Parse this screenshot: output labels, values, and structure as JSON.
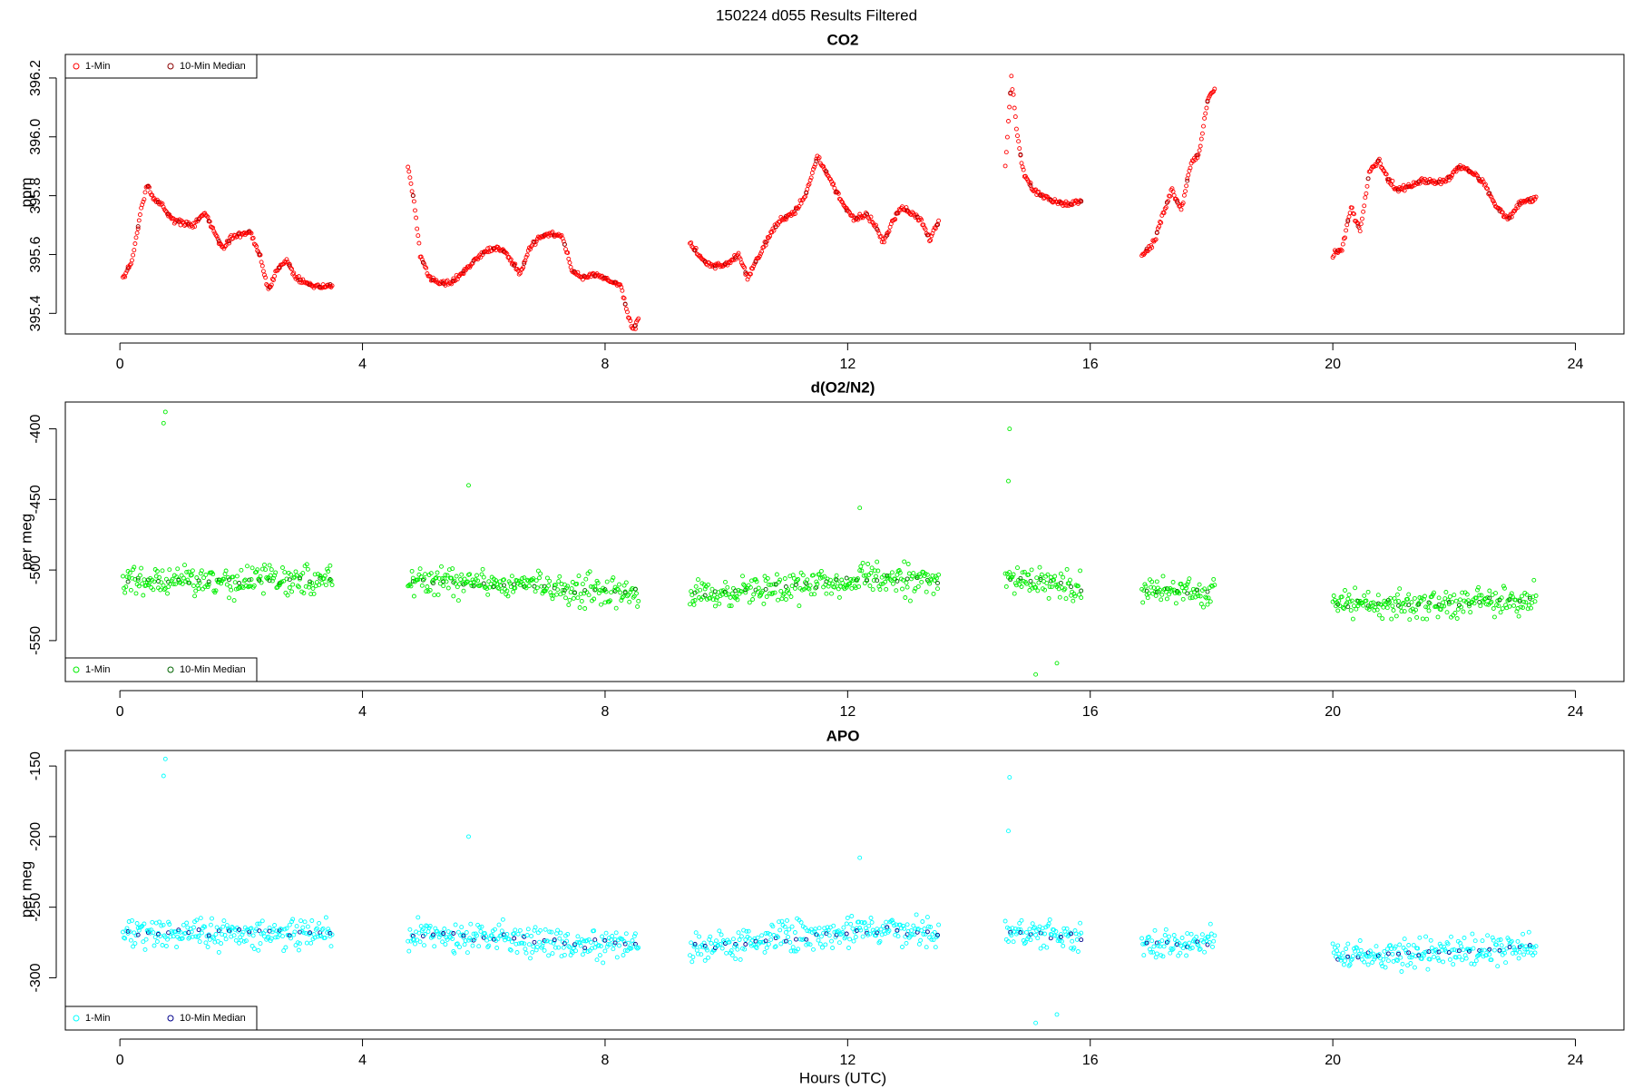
{
  "title": "150224   d055   Results Filtered",
  "xlabel": "Hours (UTC)",
  "chart_data": [
    {
      "type": "scatter",
      "title": "CO2",
      "ylabel": "ppm",
      "xlim": [
        -0.9,
        24.8
      ],
      "ylim": [
        395.33,
        396.28
      ],
      "xticks": [
        0,
        4,
        8,
        12,
        16,
        20,
        24
      ],
      "yticks": [
        395.4,
        395.6,
        395.8,
        396.0,
        396.2
      ],
      "ytick_labels": [
        "395.4",
        "395.6",
        "395.8",
        "396.0",
        "396.2"
      ],
      "legend": {
        "position": "top-left",
        "entries": [
          "1-Min",
          "10-Min Median"
        ]
      },
      "colors": {
        "one_min": "#ff0000",
        "median": "#8b0000"
      },
      "segments": [
        [
          0.05,
          3.5
        ],
        [
          4.75,
          8.55
        ],
        [
          9.4,
          13.5
        ],
        [
          14.6,
          15.85
        ],
        [
          16.85,
          18.05
        ],
        [
          20.0,
          23.35
        ]
      ],
      "anchors": [
        [
          0.05,
          395.52
        ],
        [
          0.2,
          395.58
        ],
        [
          0.35,
          395.75
        ],
        [
          0.45,
          395.84
        ],
        [
          0.55,
          395.79
        ],
        [
          0.7,
          395.77
        ],
        [
          0.85,
          395.72
        ],
        [
          1.0,
          395.71
        ],
        [
          1.2,
          395.7
        ],
        [
          1.4,
          395.74
        ],
        [
          1.55,
          395.68
        ],
        [
          1.7,
          395.62
        ],
        [
          1.85,
          395.66
        ],
        [
          2.0,
          395.67
        ],
        [
          2.15,
          395.68
        ],
        [
          2.3,
          395.6
        ],
        [
          2.45,
          395.48
        ],
        [
          2.6,
          395.55
        ],
        [
          2.75,
          395.58
        ],
        [
          2.9,
          395.52
        ],
        [
          3.1,
          395.5
        ],
        [
          3.3,
          395.49
        ],
        [
          3.5,
          395.5
        ],
        [
          4.75,
          395.9
        ],
        [
          4.85,
          395.78
        ],
        [
          4.95,
          395.6
        ],
        [
          5.1,
          395.52
        ],
        [
          5.3,
          395.5
        ],
        [
          5.5,
          395.51
        ],
        [
          5.7,
          395.55
        ],
        [
          5.9,
          395.59
        ],
        [
          6.1,
          395.62
        ],
        [
          6.3,
          395.62
        ],
        [
          6.45,
          395.58
        ],
        [
          6.6,
          395.53
        ],
        [
          6.75,
          395.62
        ],
        [
          6.9,
          395.66
        ],
        [
          7.1,
          395.67
        ],
        [
          7.3,
          395.66
        ],
        [
          7.45,
          395.55
        ],
        [
          7.6,
          395.52
        ],
        [
          7.8,
          395.53
        ],
        [
          8.0,
          395.52
        ],
        [
          8.25,
          395.5
        ],
        [
          8.35,
          395.42
        ],
        [
          8.45,
          395.34
        ],
        [
          8.55,
          395.38
        ],
        [
          9.4,
          395.64
        ],
        [
          9.6,
          395.58
        ],
        [
          9.8,
          395.56
        ],
        [
          10.0,
          395.57
        ],
        [
          10.2,
          395.6
        ],
        [
          10.35,
          395.52
        ],
        [
          10.5,
          395.58
        ],
        [
          10.7,
          395.66
        ],
        [
          10.9,
          395.72
        ],
        [
          11.1,
          395.74
        ],
        [
          11.3,
          395.8
        ],
        [
          11.5,
          395.93
        ],
        [
          11.65,
          395.88
        ],
        [
          11.8,
          395.82
        ],
        [
          11.95,
          395.76
        ],
        [
          12.1,
          395.72
        ],
        [
          12.3,
          395.74
        ],
        [
          12.45,
          395.7
        ],
        [
          12.6,
          395.64
        ],
        [
          12.75,
          395.72
        ],
        [
          12.9,
          395.76
        ],
        [
          13.05,
          395.74
        ],
        [
          13.2,
          395.72
        ],
        [
          13.35,
          395.65
        ],
        [
          13.5,
          395.71
        ],
        [
          14.6,
          395.9
        ],
        [
          14.7,
          396.2
        ],
        [
          14.8,
          396.0
        ],
        [
          14.9,
          395.88
        ],
        [
          15.05,
          395.82
        ],
        [
          15.2,
          395.8
        ],
        [
          15.4,
          395.78
        ],
        [
          15.6,
          395.77
        ],
        [
          15.85,
          395.78
        ],
        [
          16.85,
          395.6
        ],
        [
          17.05,
          395.64
        ],
        [
          17.2,
          395.74
        ],
        [
          17.35,
          395.82
        ],
        [
          17.5,
          395.75
        ],
        [
          17.65,
          395.9
        ],
        [
          17.8,
          395.95
        ],
        [
          17.95,
          396.14
        ],
        [
          18.05,
          396.16
        ],
        [
          20.0,
          395.6
        ],
        [
          20.15,
          395.62
        ],
        [
          20.3,
          395.76
        ],
        [
          20.45,
          395.68
        ],
        [
          20.6,
          395.88
        ],
        [
          20.75,
          395.92
        ],
        [
          20.9,
          395.86
        ],
        [
          21.05,
          395.82
        ],
        [
          21.25,
          395.83
        ],
        [
          21.45,
          395.85
        ],
        [
          21.7,
          395.84
        ],
        [
          21.9,
          395.86
        ],
        [
          22.1,
          395.9
        ],
        [
          22.3,
          395.88
        ],
        [
          22.5,
          395.84
        ],
        [
          22.7,
          395.76
        ],
        [
          22.9,
          395.72
        ],
        [
          23.1,
          395.78
        ],
        [
          23.35,
          395.79
        ]
      ],
      "noise": 0.008
    },
    {
      "type": "scatter",
      "title": "d(O2/N2)",
      "ylabel": "per meg",
      "xlim": [
        -0.9,
        24.8
      ],
      "ylim": [
        -579,
        -381
      ],
      "xticks": [
        0,
        4,
        8,
        12,
        16,
        20,
        24
      ],
      "yticks": [
        -550,
        -500,
        -450,
        -400
      ],
      "ytick_labels": [
        "-550",
        "-500",
        "-450",
        "-400"
      ],
      "legend": {
        "position": "bottom-left",
        "entries": [
          "1-Min",
          "10-Min Median"
        ]
      },
      "colors": {
        "one_min": "#00ee00",
        "median": "#006400"
      },
      "segments": [
        [
          0.05,
          3.5
        ],
        [
          4.75,
          8.55
        ],
        [
          9.4,
          13.5
        ],
        [
          14.6,
          15.85
        ],
        [
          16.85,
          18.05
        ],
        [
          20.0,
          23.35
        ]
      ],
      "anchors": [
        [
          0.05,
          -508
        ],
        [
          3.5,
          -507
        ],
        [
          4.75,
          -508
        ],
        [
          6.0,
          -510
        ],
        [
          7.5,
          -515
        ],
        [
          8.55,
          -515
        ],
        [
          9.4,
          -518
        ],
        [
          11.0,
          -512
        ],
        [
          12.5,
          -506
        ],
        [
          13.5,
          -508
        ],
        [
          14.6,
          -505
        ],
        [
          15.85,
          -513
        ],
        [
          16.85,
          -515
        ],
        [
          18.05,
          -515
        ],
        [
          20.0,
          -524
        ],
        [
          21.5,
          -524
        ],
        [
          23.35,
          -520
        ]
      ],
      "noise": 9,
      "outliers": [
        [
          0.75,
          -388
        ],
        [
          0.72,
          -396
        ],
        [
          5.75,
          -440
        ],
        [
          12.2,
          -456
        ],
        [
          14.65,
          -437
        ],
        [
          14.67,
          -400
        ],
        [
          15.1,
          -574
        ],
        [
          15.45,
          -566
        ]
      ]
    },
    {
      "type": "scatter",
      "title": "APO",
      "ylabel": "per meg",
      "xlim": [
        -0.9,
        24.8
      ],
      "ylim": [
        -337,
        -139
      ],
      "xticks": [
        0,
        4,
        8,
        12,
        16,
        20,
        24
      ],
      "yticks": [
        -300,
        -250,
        -200,
        -150
      ],
      "ytick_labels": [
        "-300",
        "-250",
        "-200",
        "-150"
      ],
      "legend": {
        "position": "bottom-left",
        "entries": [
          "1-Min",
          "10-Min Median"
        ]
      },
      "colors": {
        "one_min": "#00ffff",
        "median": "#00008b"
      },
      "segments": [
        [
          0.05,
          3.5
        ],
        [
          4.75,
          8.55
        ],
        [
          9.4,
          13.5
        ],
        [
          14.6,
          15.85
        ],
        [
          16.85,
          18.05
        ],
        [
          20.0,
          23.35
        ]
      ],
      "anchors": [
        [
          0.05,
          -268
        ],
        [
          3.5,
          -268
        ],
        [
          4.75,
          -270
        ],
        [
          6.0,
          -271
        ],
        [
          7.5,
          -276
        ],
        [
          8.55,
          -276
        ],
        [
          9.4,
          -279
        ],
        [
          11.0,
          -272
        ],
        [
          12.5,
          -266
        ],
        [
          13.5,
          -268
        ],
        [
          14.6,
          -266
        ],
        [
          15.85,
          -272
        ],
        [
          16.85,
          -276
        ],
        [
          18.05,
          -275
        ],
        [
          20.0,
          -284
        ],
        [
          21.5,
          -283
        ],
        [
          23.35,
          -278
        ]
      ],
      "noise": 9,
      "outliers": [
        [
          0.75,
          -145
        ],
        [
          0.72,
          -157
        ],
        [
          5.75,
          -200
        ],
        [
          12.2,
          -215
        ],
        [
          14.65,
          -196
        ],
        [
          14.67,
          -158
        ],
        [
          15.1,
          -332
        ],
        [
          15.45,
          -326
        ]
      ]
    }
  ]
}
